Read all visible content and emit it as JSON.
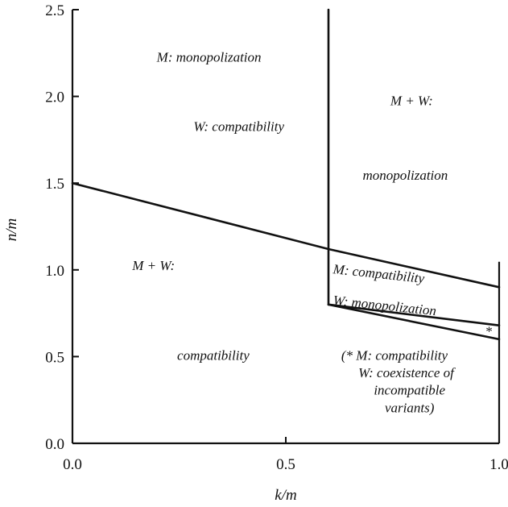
{
  "chart_data": {
    "type": "line",
    "title": "",
    "xlabel": "k/m",
    "ylabel": "n/m",
    "xlim": [
      0.0,
      1.0
    ],
    "ylim": [
      0.0,
      2.5
    ],
    "x_ticks": [
      "0.0",
      "0.5",
      "1.0"
    ],
    "y_ticks": [
      "0.0",
      "0.5",
      "1.0",
      "1.5",
      "2.0",
      "2.5"
    ],
    "grid": false,
    "boundaries": [
      {
        "points": [
          [
            0.0,
            1.5
          ],
          [
            0.6,
            1.12
          ],
          [
            1.0,
            0.9
          ]
        ]
      },
      {
        "points": [
          [
            0.6,
            2.5
          ],
          [
            0.6,
            0.8
          ]
        ]
      },
      {
        "points": [
          [
            0.6,
            0.8
          ],
          [
            1.0,
            0.68
          ]
        ]
      },
      {
        "points": [
          [
            0.6,
            0.8
          ],
          [
            1.0,
            0.6
          ]
        ]
      }
    ],
    "annotations": [
      {
        "text": "M: monopolization",
        "x": 0.32,
        "y": 2.2,
        "anchor": "middle"
      },
      {
        "text": "W: compatibility",
        "x": 0.39,
        "y": 1.8,
        "anchor": "middle"
      },
      {
        "text": "M + W:",
        "x": 0.795,
        "y": 1.95,
        "anchor": "middle"
      },
      {
        "text": "monopolization",
        "x": 0.78,
        "y": 1.52,
        "anchor": "middle"
      },
      {
        "text": "M + W:",
        "x": 0.19,
        "y": 1.0,
        "anchor": "middle"
      },
      {
        "text": "compatibility",
        "x": 0.33,
        "y": 0.48,
        "anchor": "middle"
      },
      {
        "text": "M: compatibility",
        "x": 0.61,
        "y": 0.98,
        "anchor": "start",
        "rotate": 6
      },
      {
        "text": "W: monopolization",
        "x": 0.61,
        "y": 0.8,
        "anchor": "start",
        "rotate": 6
      },
      {
        "text": "*",
        "x": 0.975,
        "y": 0.62,
        "anchor": "middle"
      },
      {
        "text": "(* M: compatibility",
        "x": 0.63,
        "y": 0.48,
        "anchor": "start"
      },
      {
        "text": "W: coexistence of",
        "x": 0.67,
        "y": 0.38,
        "anchor": "start"
      },
      {
        "text": "incompatible",
        "x": 0.79,
        "y": 0.28,
        "anchor": "middle"
      },
      {
        "text": "variants)",
        "x": 0.79,
        "y": 0.18,
        "anchor": "middle"
      }
    ]
  }
}
